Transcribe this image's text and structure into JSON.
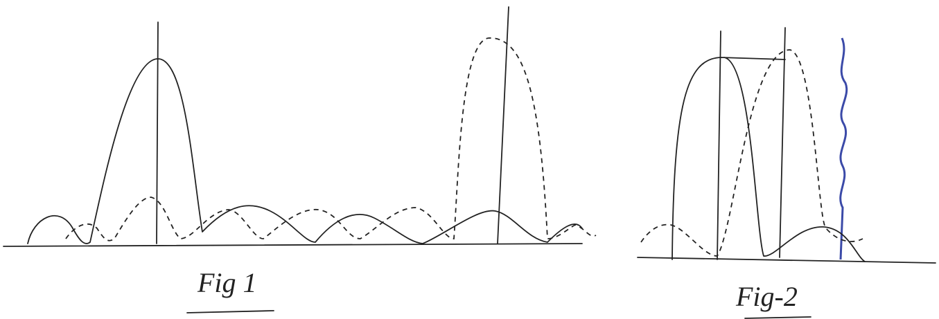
{
  "figures": [
    {
      "caption": "Fig 1"
    },
    {
      "caption": "Fig-2"
    }
  ]
}
